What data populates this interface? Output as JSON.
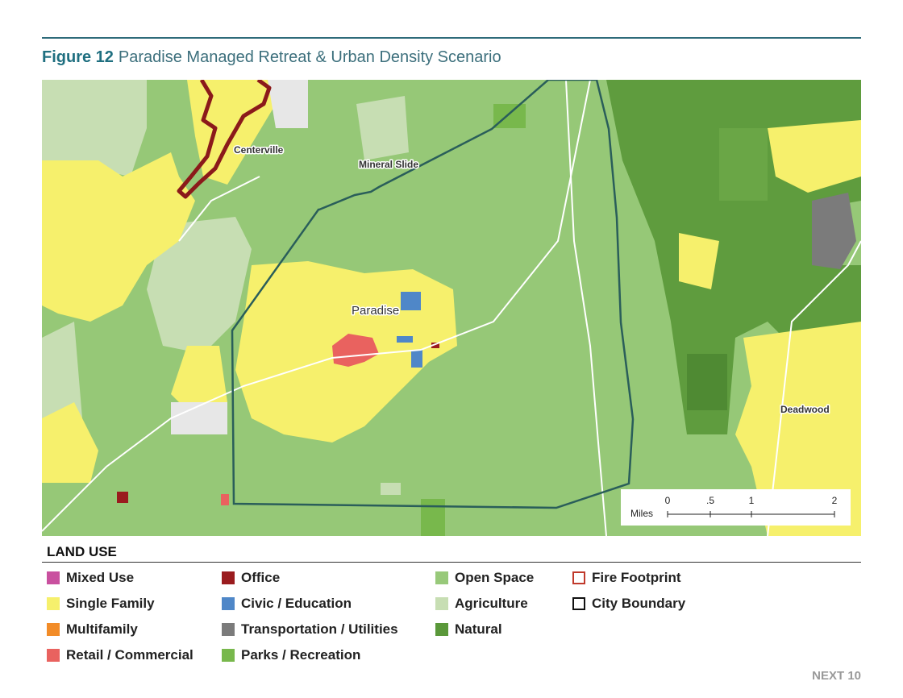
{
  "header": {
    "figure": "Figure 12",
    "title": "Paradise Managed Retreat & Urban Density Scenario"
  },
  "map": {
    "labels": [
      "Centerville",
      "Mineral Slide",
      "Paradise",
      "Deadwood"
    ],
    "scale": {
      "unit": "Miles",
      "ticks": [
        "0",
        ".5",
        "1",
        "2"
      ]
    }
  },
  "legend": {
    "title": "LAND USE",
    "items": [
      {
        "label": "Mixed Use",
        "color": "#c9509f",
        "style": "fill"
      },
      {
        "label": "Single Family",
        "color": "#f6f06c",
        "style": "fill"
      },
      {
        "label": "Multifamily",
        "color": "#f28c28",
        "style": "fill"
      },
      {
        "label": "Retail / Commercial",
        "color": "#e9625f",
        "style": "fill"
      },
      {
        "label": "Office",
        "color": "#9a1b1e",
        "style": "fill"
      },
      {
        "label": "Civic / Education",
        "color": "#4f87c8",
        "style": "fill"
      },
      {
        "label": "Transportation / Utilities",
        "color": "#7b7b7b",
        "style": "fill"
      },
      {
        "label": "Parks / Recreation",
        "color": "#78b84c",
        "style": "fill"
      },
      {
        "label": "Open Space",
        "color": "#98c97a",
        "style": "fill"
      },
      {
        "label": "Agriculture",
        "color": "#c7deb3",
        "style": "fill"
      },
      {
        "label": "Natural",
        "color": "#5a983a",
        "style": "fill"
      },
      {
        "label": "Fire Footprint",
        "color": "#c0392b",
        "style": "outline"
      },
      {
        "label": "City Boundary",
        "color": "#111111",
        "style": "outline"
      }
    ]
  },
  "footer": "NEXT 10"
}
